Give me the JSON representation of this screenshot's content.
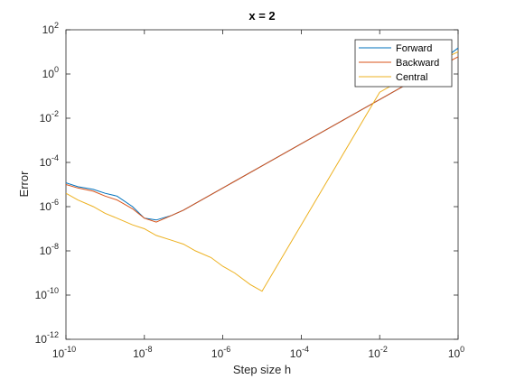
{
  "chart_data": {
    "type": "line",
    "title": "x = 2",
    "xlabel": "Step size h",
    "ylabel": "Error",
    "xscale": "log",
    "yscale": "log",
    "xlim": [
      1e-10,
      1
    ],
    "ylim": [
      1e-12,
      100
    ],
    "x_ticks": [
      {
        "base": "10",
        "exp": "-10"
      },
      {
        "base": "10",
        "exp": "-8"
      },
      {
        "base": "10",
        "exp": "-6"
      },
      {
        "base": "10",
        "exp": "-4"
      },
      {
        "base": "10",
        "exp": "-2"
      },
      {
        "base": "10",
        "exp": "0"
      }
    ],
    "y_ticks": [
      {
        "base": "10",
        "exp": "-12"
      },
      {
        "base": "10",
        "exp": "-10"
      },
      {
        "base": "10",
        "exp": "-8"
      },
      {
        "base": "10",
        "exp": "-6"
      },
      {
        "base": "10",
        "exp": "-4"
      },
      {
        "base": "10",
        "exp": "-2"
      },
      {
        "base": "10",
        "exp": "0"
      },
      {
        "base": "10",
        "exp": "2"
      }
    ],
    "grid": false,
    "legend_position": "top-right",
    "series": [
      {
        "name": "Forward",
        "color": "#0072BD",
        "x": [
          1e-10,
          2e-10,
          5e-10,
          1e-09,
          2e-09,
          5e-09,
          1e-08,
          2e-08,
          5e-08,
          1e-07,
          1e-06,
          1e-05,
          0.0001,
          0.001,
          0.01,
          0.1,
          1
        ],
        "y": [
          1.2e-05,
          8e-06,
          6e-06,
          4e-06,
          3e-06,
          1e-06,
          3e-07,
          2.5e-07,
          4e-07,
          7e-07,
          7e-06,
          7e-05,
          0.0007,
          0.007,
          0.07,
          0.7,
          15
        ]
      },
      {
        "name": "Backward",
        "color": "#D95319",
        "x": [
          1e-10,
          2e-10,
          5e-10,
          1e-09,
          2e-09,
          5e-09,
          1e-08,
          2e-08,
          5e-08,
          1e-07,
          1e-06,
          1e-05,
          0.0001,
          0.001,
          0.01,
          0.1,
          1
        ],
        "y": [
          1e-05,
          7e-06,
          5e-06,
          3e-06,
          2e-06,
          8e-07,
          3e-07,
          2e-07,
          4e-07,
          7e-07,
          7e-06,
          7e-05,
          0.0007,
          0.007,
          0.07,
          0.7,
          6
        ]
      },
      {
        "name": "Central",
        "color": "#EDB120",
        "x": [
          1e-10,
          2e-10,
          5e-10,
          1e-09,
          2e-09,
          5e-09,
          1e-08,
          2e-08,
          5e-08,
          1e-07,
          2e-07,
          5e-07,
          1e-06,
          2e-06,
          5e-06,
          1e-05,
          0.0001,
          0.001,
          0.01,
          0.1,
          1
        ],
        "y": [
          4e-06,
          2e-06,
          1e-06,
          5e-07,
          3e-07,
          1.5e-07,
          1e-07,
          5e-08,
          3e-08,
          2e-08,
          1e-08,
          5e-09,
          2e-09,
          1e-09,
          3e-10,
          1.5e-10,
          1.5e-07,
          0.00015,
          0.15,
          1.5,
          10
        ]
      }
    ]
  }
}
